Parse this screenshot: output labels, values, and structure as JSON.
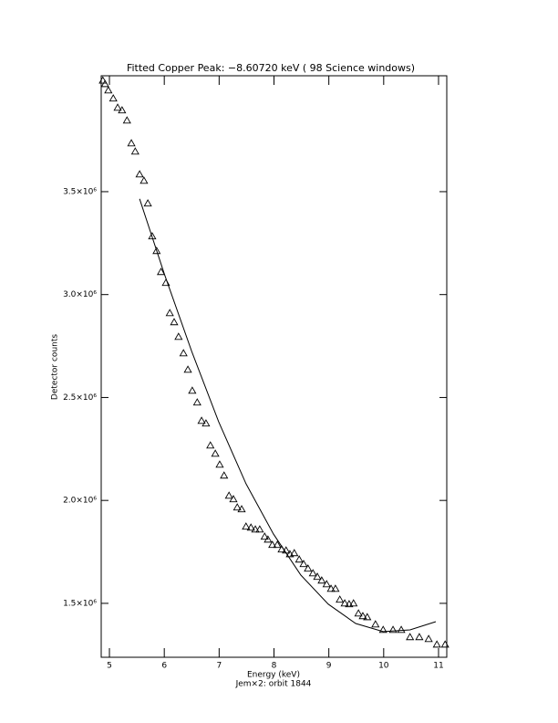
{
  "chart_data": {
    "type": "scatter",
    "title": "Fitted Copper Peak:     −8.60720 keV (      98 Science windows)",
    "x_label": "Energy (keV)",
    "subtitle": "Jem×2: orbit 1844",
    "y_label": "Detector counts",
    "xlim": [
      4.85,
      11.15
    ],
    "ylim": [
      1238000,
      4063000
    ],
    "xticks": [
      5,
      6,
      7,
      8,
      9,
      10,
      11
    ],
    "yticks": [
      {
        "value": 1500000,
        "label": "1.5×10⁶"
      },
      {
        "value": 2000000,
        "label": "2.0×10⁶"
      },
      {
        "value": 2500000,
        "label": "2.5×10⁶"
      },
      {
        "value": 3000000,
        "label": "3.0×10⁶"
      },
      {
        "value": 3500000,
        "label": "3.5×10⁶"
      }
    ],
    "grid": false,
    "series": [
      {
        "color": "#000000",
        "marker": "triangle",
        "x": [
          4.88,
          4.92,
          4.98,
          5.07,
          5.15,
          5.23,
          5.32,
          5.4,
          5.47,
          5.55,
          5.63,
          5.7,
          5.78,
          5.86,
          5.94,
          6.03,
          6.1,
          6.18,
          6.26,
          6.35,
          6.43,
          6.51,
          6.6,
          6.68,
          6.76,
          6.84,
          6.93,
          7.01,
          7.09,
          7.18,
          7.26,
          7.33,
          7.41,
          7.49,
          7.58,
          7.66,
          7.74,
          7.83,
          7.89,
          7.97,
          8.06,
          8.14,
          8.22,
          8.29,
          8.37,
          8.46,
          8.54,
          8.62,
          8.71,
          8.79,
          8.87,
          8.96,
          9.04,
          9.12,
          9.2,
          9.29,
          9.37,
          9.45,
          9.54,
          9.62,
          9.7,
          9.85,
          9.99,
          10.17,
          10.32,
          10.48,
          10.65,
          10.82,
          10.97,
          11.12
        ],
        "values": [
          4040000,
          4023000,
          3992000,
          3953000,
          3908000,
          3895000,
          3846000,
          3735000,
          3695000,
          3584000,
          3553000,
          3443000,
          3283000,
          3212000,
          3110000,
          3057000,
          2910000,
          2866000,
          2795000,
          2715000,
          2635000,
          2533000,
          2476000,
          2387000,
          2374000,
          2267000,
          2227000,
          2174000,
          2121000,
          2023000,
          2006000,
          1966000,
          1957000,
          1873000,
          1868000,
          1859000,
          1859000,
          1824000,
          1810000,
          1784000,
          1784000,
          1762000,
          1757000,
          1739000,
          1744000,
          1713000,
          1691000,
          1669000,
          1646000,
          1629000,
          1611000,
          1593000,
          1571000,
          1571000,
          1518000,
          1500000,
          1496000,
          1500000,
          1451000,
          1438000,
          1433000,
          1398000,
          1371000,
          1371000,
          1371000,
          1336000,
          1336000,
          1327000,
          1300000,
          1300000
        ]
      },
      {
        "color": "#000000",
        "marker": "line",
        "x": [
          5.55,
          6.0,
          6.5,
          6.99,
          7.49,
          7.99,
          8.49,
          8.99,
          9.49,
          9.99,
          10.48,
          10.95
        ],
        "values": [
          3465000,
          3101000,
          2724000,
          2383000,
          2081000,
          1837000,
          1637000,
          1496000,
          1402000,
          1363000,
          1371000,
          1411000
        ]
      }
    ]
  }
}
